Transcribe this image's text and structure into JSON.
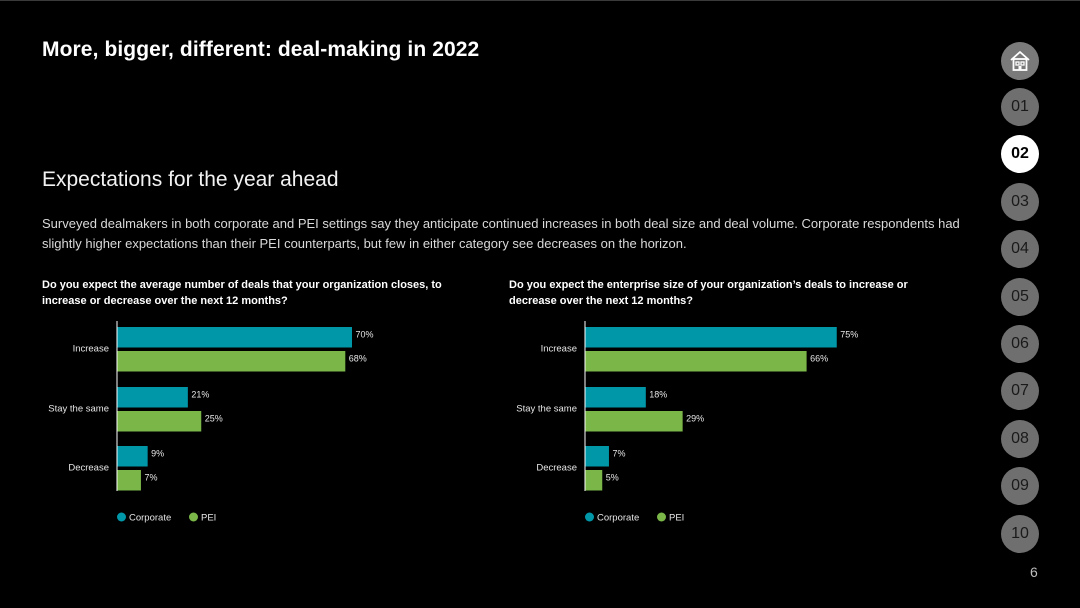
{
  "header": {
    "title": "More, bigger, different: deal-making in 2022",
    "subtitle": "Expectations for the year ahead",
    "description": "Surveyed dealmakers in both corporate and PEI settings say they anticipate continued increases in both deal size and deal volume. Corporate respondents had slightly higher expectations than their PEI counterparts, but few in either category see decreases on the horizon."
  },
  "nav": {
    "home_icon": "home-icon",
    "items": [
      "01",
      "02",
      "03",
      "04",
      "05",
      "06",
      "07",
      "08",
      "09",
      "10"
    ],
    "active": "02"
  },
  "page_number": "6",
  "colors": {
    "corporate": "#0097a9",
    "pei": "#7ab648"
  },
  "chart_data": [
    {
      "type": "bar",
      "orientation": "horizontal",
      "title": "Do you expect the average number of deals that your organization closes, to increase or decrease over the next 12 months?",
      "categories": [
        "Increase",
        "Stay the same",
        "Decrease"
      ],
      "series": [
        {
          "name": "Corporate",
          "values": [
            70,
            21,
            9
          ],
          "labels": [
            "70%",
            "21%",
            "9%"
          ]
        },
        {
          "name": "PEI",
          "values": [
            68,
            25,
            7
          ],
          "labels": [
            "68%",
            "25%",
            "7%"
          ]
        }
      ],
      "xlim": [
        0,
        100
      ],
      "unit": "%",
      "legend": "bottom-left",
      "grid": false
    },
    {
      "type": "bar",
      "orientation": "horizontal",
      "title": "Do you expect the enterprise size of your organization’s deals to increase or decrease over the next 12 months?",
      "categories": [
        "Increase",
        "Stay the same",
        "Decrease"
      ],
      "series": [
        {
          "name": "Corporate",
          "values": [
            75,
            18,
            7
          ],
          "labels": [
            "75%",
            "18%",
            "7%"
          ]
        },
        {
          "name": "PEI",
          "values": [
            66,
            29,
            5
          ],
          "labels": [
            "66%",
            "29%",
            "5%"
          ]
        }
      ],
      "xlim": [
        0,
        100
      ],
      "unit": "%",
      "legend": "bottom-left",
      "grid": false
    }
  ]
}
